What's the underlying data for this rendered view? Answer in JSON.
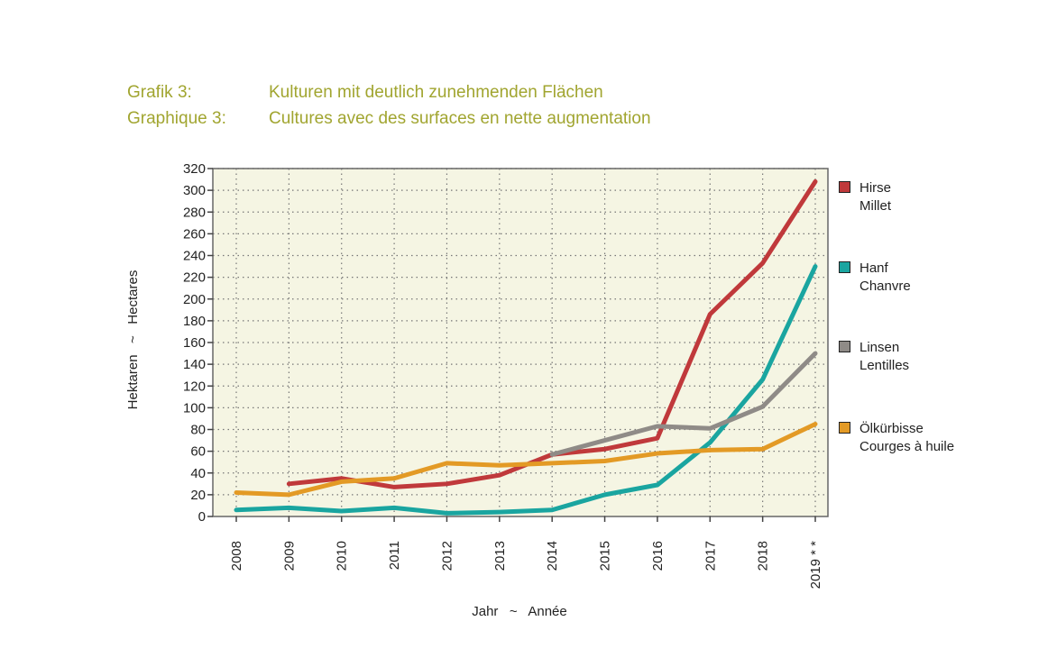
{
  "header": {
    "row1_label": "Grafik 3:",
    "row1_text": "Kulturen mit deutlich zunehmenden Flächen",
    "row2_label": "Graphique 3:",
    "row2_text": "Cultures avec des surfaces en nette augmentation",
    "title_color": "#a1a530"
  },
  "chart_data": {
    "type": "line",
    "x": [
      "2008",
      "2009",
      "2010",
      "2011",
      "2012",
      "2013",
      "2014",
      "2015",
      "2016",
      "2017",
      "2018",
      "2019 * *"
    ],
    "xlabel": "Jahr   ~   Année",
    "ylabel": "Hektaren   ~   Hectares",
    "ylim": [
      0,
      320
    ],
    "yticks": [
      0,
      20,
      40,
      60,
      80,
      100,
      120,
      140,
      160,
      180,
      200,
      220,
      240,
      260,
      280,
      300,
      320
    ],
    "grid": true,
    "plot_background": "#f5f5e3",
    "legend_position": "right",
    "series": [
      {
        "name": "Hirse",
        "name2": "Millet",
        "color": "#c0393b",
        "values": [
          null,
          30,
          35,
          27,
          30,
          38,
          57,
          62,
          72,
          186,
          233,
          308
        ]
      },
      {
        "name": "Hanf",
        "name2": "Chanvre",
        "color": "#1aa5a0",
        "values": [
          6,
          8,
          5,
          8,
          3,
          4,
          6,
          20,
          29,
          68,
          126,
          230
        ]
      },
      {
        "name": "Linsen",
        "name2": "Lentilles",
        "color": "#8f8b87",
        "values": [
          null,
          null,
          null,
          null,
          null,
          null,
          57,
          70,
          83,
          81,
          101,
          150
        ]
      },
      {
        "name": "Ölkürbisse",
        "name2": "Courges à huile",
        "color": "#e39a25",
        "values": [
          22,
          20,
          32,
          35,
          49,
          47,
          49,
          51,
          58,
          61,
          62,
          85
        ]
      }
    ]
  }
}
